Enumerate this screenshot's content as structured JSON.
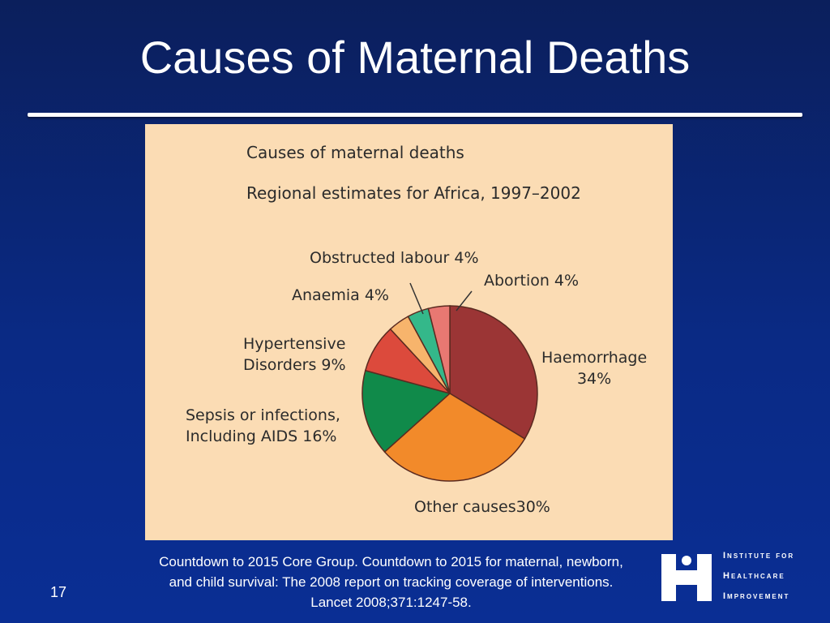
{
  "slide": {
    "title": "Causes of Maternal Deaths",
    "page_number": "17",
    "citation": "Countdown to 2015 Core Group. Countdown to 2015 for maternal, newborn, and child survival: The 2008 report on tracking coverage of interventions.  Lancet 2008;371:1247-58."
  },
  "logo": {
    "lines": [
      "Institute for",
      "Healthcare",
      "Improvement"
    ]
  },
  "colors": {
    "background": "#0a2a85",
    "panel": "#fbdcb4"
  },
  "chart_data": {
    "type": "pie",
    "title": "Causes of maternal deaths",
    "subtitle": "Regional estimates for Africa, 1997–2002",
    "slices": [
      {
        "label_lines": [
          "Haemorrhage",
          "34%"
        ],
        "value": 34,
        "color": "#9b3535"
      },
      {
        "label_lines": [
          "Other causes30%"
        ],
        "value": 30,
        "color": "#f28a2a"
      },
      {
        "label_lines": [
          "Sepsis or infections,",
          "Including AIDS 16%"
        ],
        "value": 16,
        "color": "#108a4a"
      },
      {
        "label_lines": [
          "Hypertensive",
          "Disorders 9%"
        ],
        "value": 9,
        "color": "#dc4a3c"
      },
      {
        "label_lines": [
          "Anaemia 4%"
        ],
        "value": 4,
        "color": "#f7b46c"
      },
      {
        "label_lines": [
          "Obstructed labour 4%"
        ],
        "value": 4,
        "color": "#34b88a"
      },
      {
        "label_lines": [
          "Abortion 4%"
        ],
        "value": 4,
        "color": "#e87872"
      }
    ]
  }
}
